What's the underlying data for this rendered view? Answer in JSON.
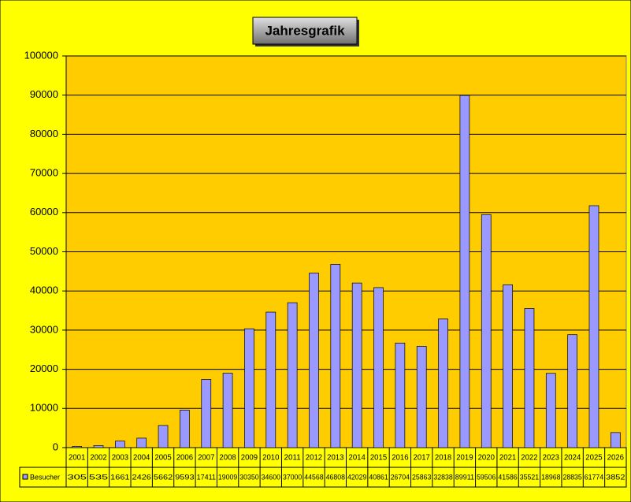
{
  "chart_data": {
    "type": "bar",
    "title": "Jahresgrafik",
    "categories": [
      "2001",
      "2002",
      "2003",
      "2004",
      "2005",
      "2006",
      "2007",
      "2008",
      "2009",
      "2010",
      "2011",
      "2012",
      "2013",
      "2014",
      "2015",
      "2016",
      "2017",
      "2018",
      "2019",
      "2020",
      "2021",
      "2022",
      "2023",
      "2024",
      "2025",
      "2026"
    ],
    "series": [
      {
        "name": "Besucher",
        "color": "#9999ff",
        "values": [
          305,
          535,
          1661,
          2426,
          5662,
          9593,
          17411,
          19009,
          30350,
          34600,
          37000,
          44568,
          46808,
          42029,
          40861,
          26704,
          25863,
          32838,
          89911,
          59506,
          41586,
          35521,
          18968,
          28835,
          61774,
          3852
        ]
      }
    ],
    "ylim": [
      0,
      100000
    ],
    "yticks": [
      0,
      10000,
      20000,
      30000,
      40000,
      50000,
      60000,
      70000,
      80000,
      90000,
      100000
    ],
    "grid": true
  }
}
